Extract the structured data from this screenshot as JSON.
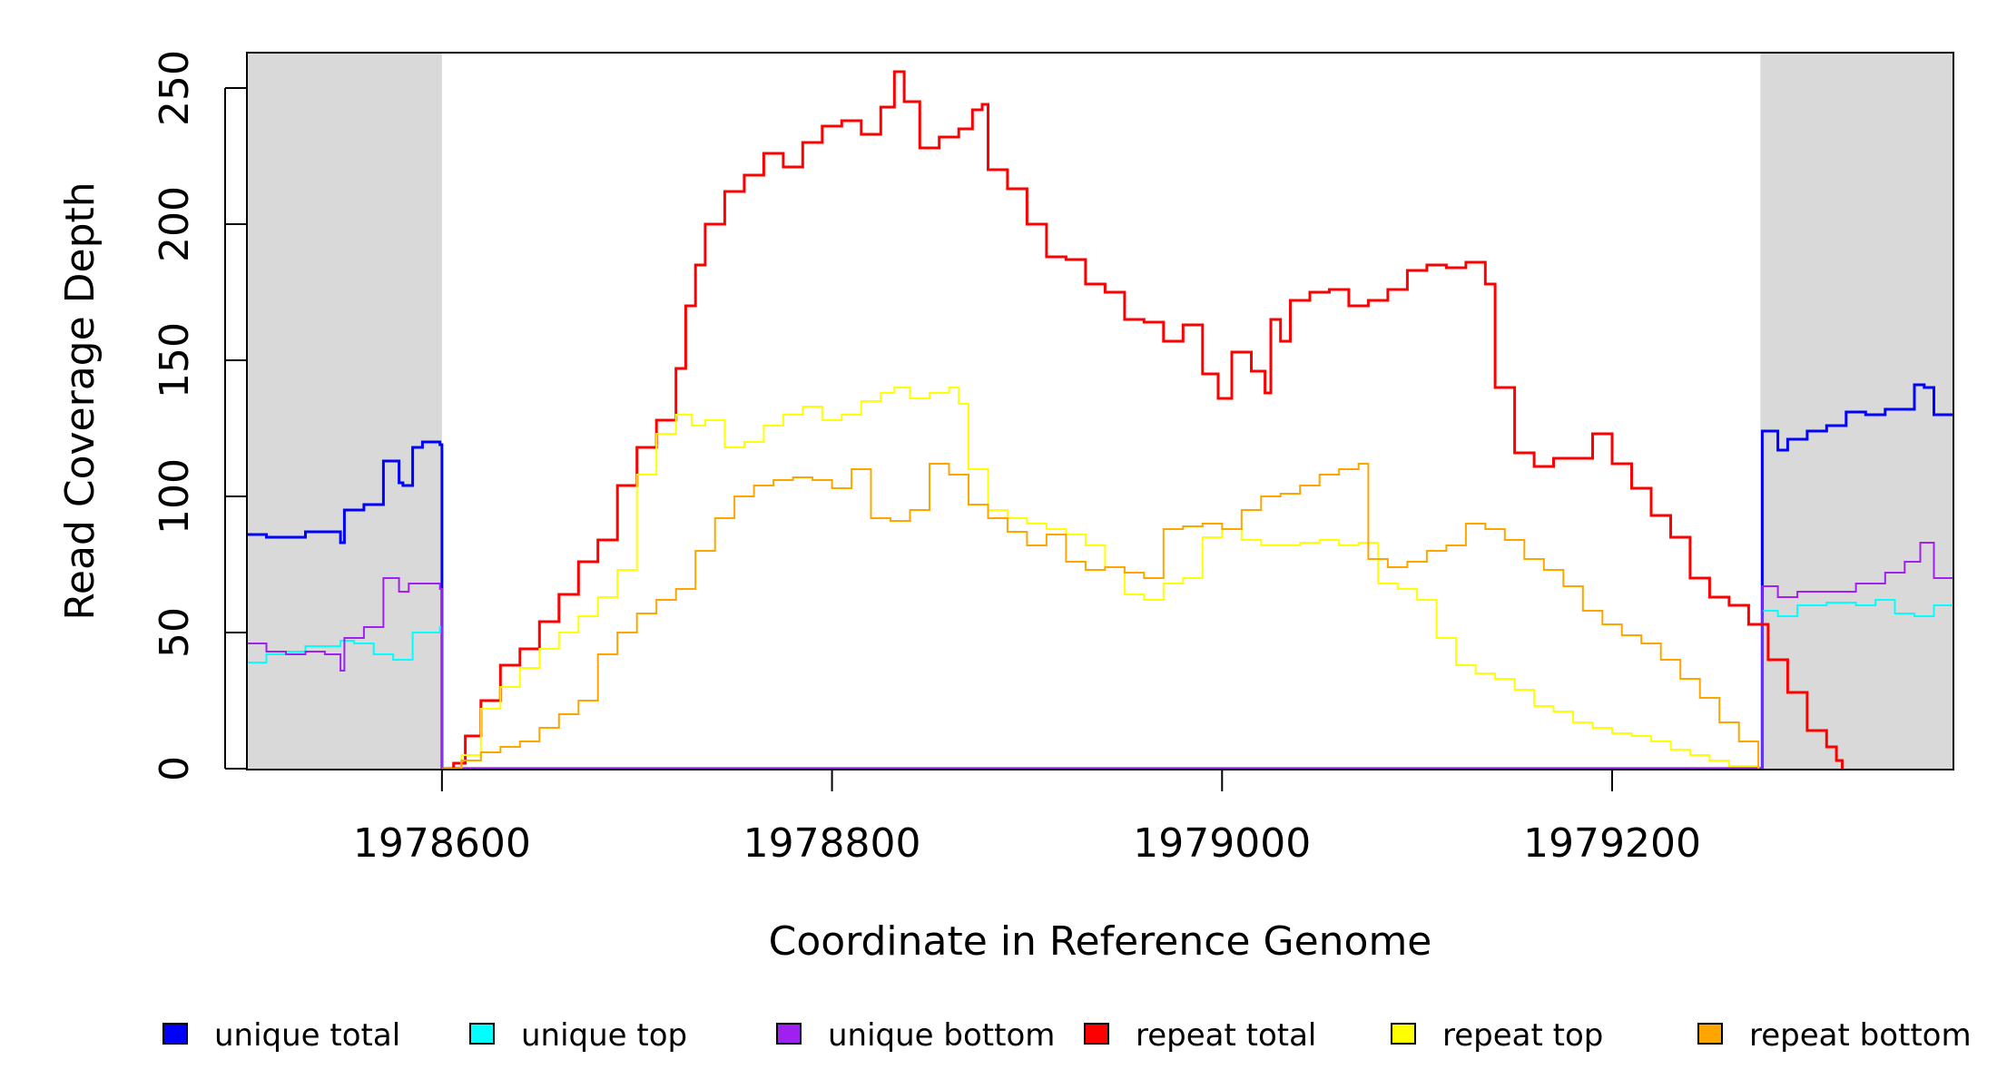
{
  "chart_data": {
    "type": "line",
    "xlabel": "Coordinate in Reference Genome",
    "ylabel": "Read Coverage Depth",
    "xlim": [
      1978500,
      1979375
    ],
    "ylim": [
      0,
      250
    ],
    "x_ticks": [
      1978600,
      1978800,
      1979000,
      1979200
    ],
    "x_tick_labels": [
      "1978600",
      "1978800",
      "1979000",
      "1979200"
    ],
    "y_ticks": [
      0,
      50,
      100,
      150,
      200,
      250
    ],
    "y_tick_labels": [
      "0",
      "50",
      "100",
      "150",
      "200",
      "250"
    ],
    "shaded_regions": [
      {
        "from": 1978500,
        "to": 1978600,
        "color": "#d9d9d9"
      },
      {
        "from": 1979276,
        "to": 1979375,
        "color": "#d9d9d9"
      }
    ],
    "legend_position": "bottom",
    "series": [
      {
        "name": "unique total",
        "color": "#0000ff",
        "width": 3,
        "points": [
          [
            1978500,
            86
          ],
          [
            1978510,
            85
          ],
          [
            1978520,
            85
          ],
          [
            1978530,
            87
          ],
          [
            1978540,
            87
          ],
          [
            1978548,
            83
          ],
          [
            1978550,
            95
          ],
          [
            1978560,
            97
          ],
          [
            1978570,
            113
          ],
          [
            1978578,
            105
          ],
          [
            1978580,
            104
          ],
          [
            1978585,
            118
          ],
          [
            1978590,
            120
          ],
          [
            1978599,
            119
          ],
          [
            1978600,
            0
          ],
          [
            1979276,
            0
          ],
          [
            1979277,
            124
          ],
          [
            1979285,
            117
          ],
          [
            1979290,
            121
          ],
          [
            1979300,
            124
          ],
          [
            1979310,
            126
          ],
          [
            1979320,
            131
          ],
          [
            1979330,
            130
          ],
          [
            1979340,
            132
          ],
          [
            1979350,
            132
          ],
          [
            1979355,
            141
          ],
          [
            1979360,
            140
          ],
          [
            1979365,
            130
          ],
          [
            1979375,
            130
          ]
        ]
      },
      {
        "name": "unique top",
        "color": "#00ffff",
        "width": 2,
        "points": [
          [
            1978500,
            39
          ],
          [
            1978510,
            42
          ],
          [
            1978520,
            43
          ],
          [
            1978530,
            45
          ],
          [
            1978540,
            45
          ],
          [
            1978548,
            47
          ],
          [
            1978555,
            46
          ],
          [
            1978565,
            42
          ],
          [
            1978575,
            40
          ],
          [
            1978585,
            50
          ],
          [
            1978599,
            52
          ],
          [
            1978600,
            0
          ],
          [
            1979276,
            0
          ],
          [
            1979277,
            58
          ],
          [
            1979285,
            56
          ],
          [
            1979295,
            60
          ],
          [
            1979310,
            61
          ],
          [
            1979325,
            60
          ],
          [
            1979335,
            62
          ],
          [
            1979345,
            57
          ],
          [
            1979355,
            56
          ],
          [
            1979365,
            60
          ],
          [
            1979375,
            61
          ]
        ]
      },
      {
        "name": "unique bottom",
        "color": "#a020f0",
        "width": 2,
        "points": [
          [
            1978500,
            46
          ],
          [
            1978510,
            43
          ],
          [
            1978520,
            42
          ],
          [
            1978530,
            43
          ],
          [
            1978540,
            42
          ],
          [
            1978548,
            36
          ],
          [
            1978550,
            48
          ],
          [
            1978560,
            52
          ],
          [
            1978570,
            70
          ],
          [
            1978578,
            65
          ],
          [
            1978583,
            68
          ],
          [
            1978590,
            68
          ],
          [
            1978599,
            66
          ],
          [
            1978600,
            0
          ],
          [
            1979276,
            0
          ],
          [
            1979277,
            67
          ],
          [
            1979285,
            63
          ],
          [
            1979295,
            65
          ],
          [
            1979310,
            65
          ],
          [
            1979325,
            68
          ],
          [
            1979340,
            72
          ],
          [
            1979350,
            76
          ],
          [
            1979358,
            83
          ],
          [
            1979365,
            70
          ],
          [
            1979375,
            70
          ]
        ]
      },
      {
        "name": "repeat total",
        "color": "#ff0000",
        "width": 3,
        "points": [
          [
            1978600,
            0
          ],
          [
            1978606,
            2
          ],
          [
            1978612,
            12
          ],
          [
            1978620,
            25
          ],
          [
            1978630,
            38
          ],
          [
            1978640,
            44
          ],
          [
            1978650,
            54
          ],
          [
            1978660,
            64
          ],
          [
            1978670,
            76
          ],
          [
            1978680,
            84
          ],
          [
            1978690,
            104
          ],
          [
            1978700,
            118
          ],
          [
            1978710,
            128
          ],
          [
            1978720,
            147
          ],
          [
            1978725,
            170
          ],
          [
            1978730,
            185
          ],
          [
            1978735,
            200
          ],
          [
            1978745,
            212
          ],
          [
            1978755,
            218
          ],
          [
            1978765,
            226
          ],
          [
            1978775,
            221
          ],
          [
            1978785,
            230
          ],
          [
            1978795,
            236
          ],
          [
            1978805,
            238
          ],
          [
            1978815,
            233
          ],
          [
            1978825,
            243
          ],
          [
            1978832,
            256
          ],
          [
            1978837,
            245
          ],
          [
            1978845,
            228
          ],
          [
            1978855,
            232
          ],
          [
            1978865,
            235
          ],
          [
            1978872,
            242
          ],
          [
            1978877,
            244
          ],
          [
            1978880,
            220
          ],
          [
            1978890,
            213
          ],
          [
            1978900,
            200
          ],
          [
            1978910,
            188
          ],
          [
            1978920,
            187
          ],
          [
            1978930,
            178
          ],
          [
            1978940,
            175
          ],
          [
            1978950,
            165
          ],
          [
            1978960,
            164
          ],
          [
            1978970,
            157
          ],
          [
            1978980,
            163
          ],
          [
            1978990,
            145
          ],
          [
            1978998,
            136
          ],
          [
            1979005,
            153
          ],
          [
            1979015,
            146
          ],
          [
            1979022,
            138
          ],
          [
            1979025,
            165
          ],
          [
            1979030,
            157
          ],
          [
            1979035,
            172
          ],
          [
            1979045,
            175
          ],
          [
            1979055,
            176
          ],
          [
            1979065,
            170
          ],
          [
            1979075,
            172
          ],
          [
            1979085,
            176
          ],
          [
            1979095,
            183
          ],
          [
            1979105,
            185
          ],
          [
            1979115,
            184
          ],
          [
            1979125,
            186
          ],
          [
            1979135,
            178
          ],
          [
            1979140,
            140
          ],
          [
            1979150,
            116
          ],
          [
            1979160,
            111
          ],
          [
            1979170,
            114
          ],
          [
            1979180,
            114
          ],
          [
            1979190,
            123
          ],
          [
            1979200,
            112
          ],
          [
            1979210,
            103
          ],
          [
            1979220,
            93
          ],
          [
            1979230,
            85
          ],
          [
            1979240,
            70
          ],
          [
            1979250,
            63
          ],
          [
            1979260,
            60
          ],
          [
            1979270,
            53
          ],
          [
            1979280,
            40
          ],
          [
            1979290,
            28
          ],
          [
            1979300,
            14
          ],
          [
            1979310,
            8
          ],
          [
            1979315,
            3
          ],
          [
            1979318,
            0
          ]
        ]
      },
      {
        "name": "repeat top",
        "color": "#ffff00",
        "width": 2,
        "points": [
          [
            1978600,
            0
          ],
          [
            1978610,
            5
          ],
          [
            1978620,
            22
          ],
          [
            1978630,
            30
          ],
          [
            1978640,
            37
          ],
          [
            1978650,
            44
          ],
          [
            1978660,
            50
          ],
          [
            1978670,
            56
          ],
          [
            1978680,
            63
          ],
          [
            1978690,
            73
          ],
          [
            1978700,
            108
          ],
          [
            1978710,
            123
          ],
          [
            1978720,
            130
          ],
          [
            1978728,
            126
          ],
          [
            1978735,
            128
          ],
          [
            1978745,
            118
          ],
          [
            1978755,
            120
          ],
          [
            1978765,
            126
          ],
          [
            1978775,
            130
          ],
          [
            1978785,
            133
          ],
          [
            1978795,
            128
          ],
          [
            1978805,
            130
          ],
          [
            1978815,
            135
          ],
          [
            1978825,
            138
          ],
          [
            1978832,
            140
          ],
          [
            1978840,
            136
          ],
          [
            1978850,
            138
          ],
          [
            1978860,
            140
          ],
          [
            1978865,
            134
          ],
          [
            1978870,
            110
          ],
          [
            1978880,
            95
          ],
          [
            1978890,
            92
          ],
          [
            1978900,
            90
          ],
          [
            1978910,
            88
          ],
          [
            1978920,
            86
          ],
          [
            1978930,
            82
          ],
          [
            1978940,
            74
          ],
          [
            1978950,
            64
          ],
          [
            1978960,
            62
          ],
          [
            1978970,
            68
          ],
          [
            1978980,
            70
          ],
          [
            1978990,
            85
          ],
          [
            1979000,
            88
          ],
          [
            1979010,
            84
          ],
          [
            1979020,
            82
          ],
          [
            1979030,
            82
          ],
          [
            1979040,
            83
          ],
          [
            1979050,
            84
          ],
          [
            1979060,
            82
          ],
          [
            1979070,
            83
          ],
          [
            1979080,
            68
          ],
          [
            1979090,
            66
          ],
          [
            1979100,
            62
          ],
          [
            1979110,
            48
          ],
          [
            1979120,
            38
          ],
          [
            1979130,
            35
          ],
          [
            1979140,
            33
          ],
          [
            1979150,
            29
          ],
          [
            1979160,
            23
          ],
          [
            1979170,
            21
          ],
          [
            1979180,
            17
          ],
          [
            1979190,
            15
          ],
          [
            1979200,
            13
          ],
          [
            1979210,
            12
          ],
          [
            1979220,
            10
          ],
          [
            1979230,
            7
          ],
          [
            1979240,
            5
          ],
          [
            1979250,
            3
          ],
          [
            1979260,
            1
          ],
          [
            1979275,
            0
          ]
        ]
      },
      {
        "name": "repeat bottom",
        "color": "#ffa500",
        "width": 2,
        "points": [
          [
            1978600,
            0
          ],
          [
            1978610,
            3
          ],
          [
            1978620,
            6
          ],
          [
            1978630,
            8
          ],
          [
            1978640,
            10
          ],
          [
            1978650,
            15
          ],
          [
            1978660,
            20
          ],
          [
            1978670,
            25
          ],
          [
            1978680,
            42
          ],
          [
            1978690,
            50
          ],
          [
            1978700,
            57
          ],
          [
            1978710,
            62
          ],
          [
            1978720,
            66
          ],
          [
            1978730,
            80
          ],
          [
            1978740,
            92
          ],
          [
            1978750,
            100
          ],
          [
            1978760,
            104
          ],
          [
            1978770,
            106
          ],
          [
            1978780,
            107
          ],
          [
            1978790,
            106
          ],
          [
            1978800,
            103
          ],
          [
            1978810,
            110
          ],
          [
            1978820,
            92
          ],
          [
            1978830,
            91
          ],
          [
            1978840,
            95
          ],
          [
            1978850,
            112
          ],
          [
            1978860,
            108
          ],
          [
            1978870,
            97
          ],
          [
            1978880,
            92
          ],
          [
            1978890,
            87
          ],
          [
            1978900,
            82
          ],
          [
            1978910,
            86
          ],
          [
            1978920,
            76
          ],
          [
            1978930,
            73
          ],
          [
            1978940,
            74
          ],
          [
            1978950,
            72
          ],
          [
            1978960,
            70
          ],
          [
            1978970,
            88
          ],
          [
            1978980,
            89
          ],
          [
            1978990,
            90
          ],
          [
            1979000,
            88
          ],
          [
            1979010,
            95
          ],
          [
            1979020,
            100
          ],
          [
            1979030,
            101
          ],
          [
            1979040,
            104
          ],
          [
            1979050,
            108
          ],
          [
            1979060,
            110
          ],
          [
            1979070,
            112
          ],
          [
            1979075,
            77
          ],
          [
            1979085,
            74
          ],
          [
            1979095,
            76
          ],
          [
            1979105,
            80
          ],
          [
            1979115,
            82
          ],
          [
            1979125,
            90
          ],
          [
            1979135,
            88
          ],
          [
            1979145,
            84
          ],
          [
            1979155,
            77
          ],
          [
            1979165,
            73
          ],
          [
            1979175,
            67
          ],
          [
            1979185,
            58
          ],
          [
            1979195,
            53
          ],
          [
            1979205,
            49
          ],
          [
            1979215,
            46
          ],
          [
            1979225,
            40
          ],
          [
            1979235,
            33
          ],
          [
            1979245,
            26
          ],
          [
            1979255,
            17
          ],
          [
            1979265,
            10
          ],
          [
            1979275,
            0
          ]
        ]
      }
    ]
  }
}
